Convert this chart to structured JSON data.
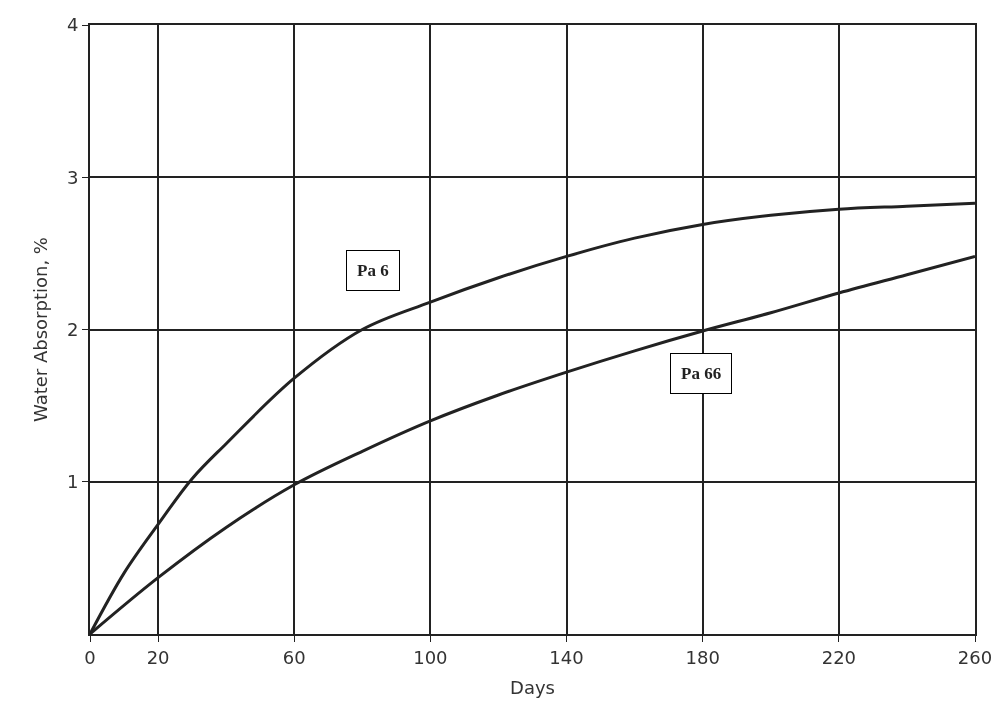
{
  "chart_data": {
    "type": "line",
    "xlabel": "Days",
    "ylabel": "Water Absorption, %",
    "xlim": [
      0,
      260
    ],
    "xticks": [
      0,
      20,
      60,
      100,
      140,
      180,
      220,
      260
    ],
    "ylim": [
      0,
      4
    ],
    "yticks": [
      1,
      2,
      3,
      4
    ],
    "grid": true,
    "marker": "none",
    "line_style": "solid",
    "series": [
      {
        "name": "Pa 6",
        "color": "#222222",
        "x": [
          0,
          10,
          20,
          30,
          40,
          60,
          80,
          100,
          120,
          140,
          160,
          180,
          200,
          220,
          240,
          260
        ],
        "values": [
          0,
          0.4,
          0.72,
          1.02,
          1.25,
          1.68,
          2.0,
          2.18,
          2.34,
          2.48,
          2.6,
          2.69,
          2.75,
          2.79,
          2.81,
          2.83
        ]
      },
      {
        "name": "Pa 66",
        "color": "#222222",
        "x": [
          0,
          20,
          40,
          60,
          80,
          100,
          120,
          140,
          160,
          180,
          200,
          220,
          240,
          260
        ],
        "values": [
          0,
          0.37,
          0.7,
          0.98,
          1.2,
          1.4,
          1.57,
          1.72,
          1.86,
          1.99,
          2.11,
          2.24,
          2.36,
          2.48
        ]
      }
    ]
  }
}
